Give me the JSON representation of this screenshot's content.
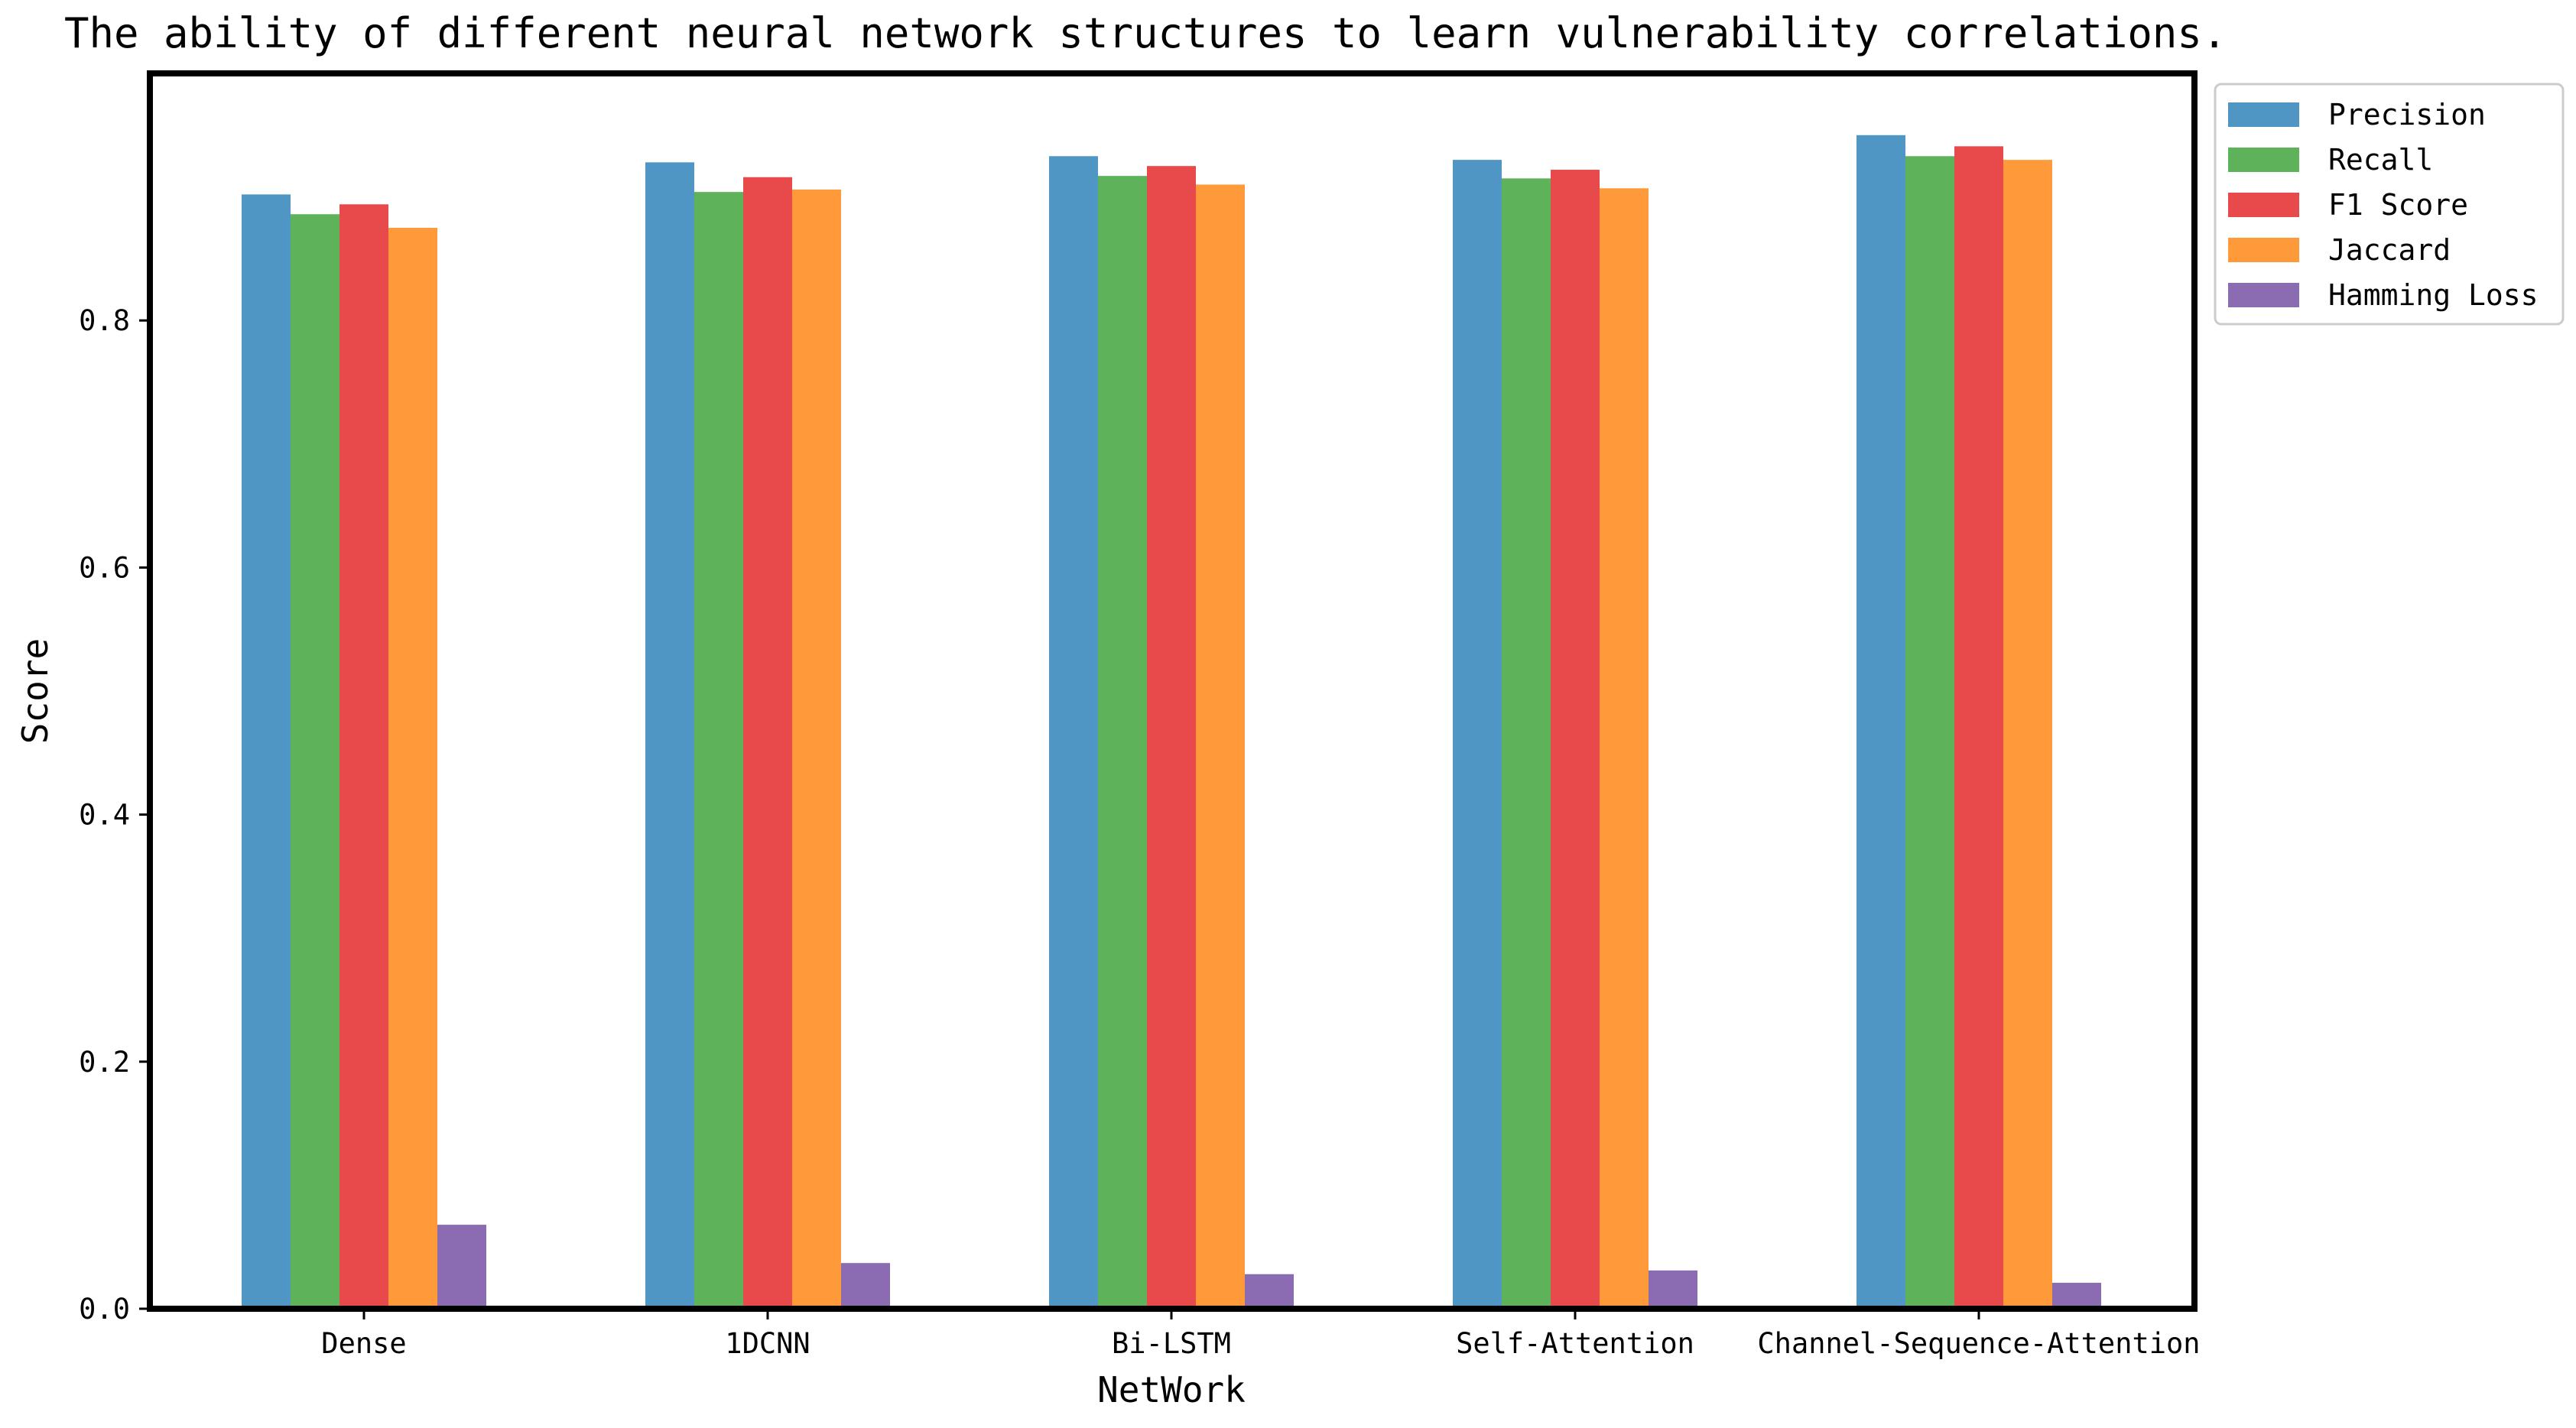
{
  "chart_data": {
    "type": "bar",
    "title": "The ability of different neural network structures to learn vulnerability correlations.",
    "xlabel": "NetWork",
    "ylabel": "Score",
    "ylim": [
      0,
      1.0
    ],
    "yticks": [
      "0.0",
      "0.2",
      "0.4",
      "0.6",
      "0.8"
    ],
    "yticks_values": [
      0.0,
      0.2,
      0.4,
      0.6,
      0.8
    ],
    "categories": [
      "Dense",
      "1DCNN",
      "Bi-LSTM",
      "Self-Attention",
      "Channel-Sequence-Attention"
    ],
    "series": [
      {
        "name": "Precision",
        "color": "#4f96c4",
        "values": [
          0.902,
          0.928,
          0.933,
          0.93,
          0.95
        ]
      },
      {
        "name": "Recall",
        "color": "#5eb35a",
        "values": [
          0.886,
          0.904,
          0.917,
          0.915,
          0.933
        ]
      },
      {
        "name": "F1 Score",
        "color": "#e8494b",
        "values": [
          0.894,
          0.916,
          0.925,
          0.922,
          0.941
        ]
      },
      {
        "name": "Jaccard",
        "color": "#fe9a39",
        "values": [
          0.875,
          0.906,
          0.91,
          0.907,
          0.93
        ]
      },
      {
        "name": "Hamming Loss",
        "color": "#8b6bb1",
        "values": [
          0.068,
          0.037,
          0.028,
          0.031,
          0.021
        ]
      }
    ],
    "grid": false,
    "legend_position": "outside-top-right"
  }
}
